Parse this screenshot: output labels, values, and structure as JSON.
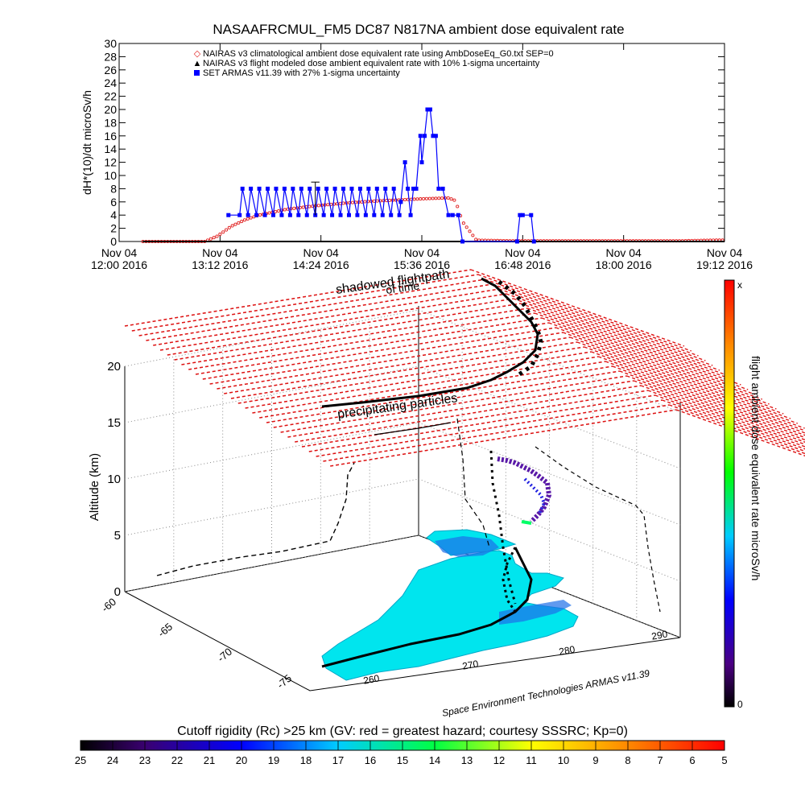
{
  "figure": {
    "title": "NASAAFRCMUL_FM5 DC87 N817NA ambient dose equivalent rate",
    "credit": "Space Environment Technologies ARMAS v11.39",
    "labels_3d": {
      "shadowed": "shadowed flightpath",
      "of_time": "of time",
      "precip": "precipitating particles"
    }
  },
  "colors": {
    "nairas_clim": "#e02020",
    "nairas_flight": "#000000",
    "armas": "#0000ff",
    "grid_red": "#dd1111",
    "coverage": "#00e5ee"
  },
  "chart_data": [
    {
      "type": "line",
      "ylabel": "dH*(10)/dt microSv/h",
      "ylim": [
        0,
        30
      ],
      "yticks": [
        0,
        2,
        4,
        6,
        8,
        10,
        12,
        14,
        16,
        18,
        20,
        22,
        24,
        26,
        28,
        30
      ],
      "xlim": [
        "2016-11-04T12:00",
        "2016-11-04T19:12"
      ],
      "xticks": [
        {
          "line1": "Nov 04",
          "line2": "12:00 2016",
          "t": 720
        },
        {
          "line1": "Nov 04",
          "line2": "13:12 2016",
          "t": 792
        },
        {
          "line1": "Nov 04",
          "line2": "14:24 2016",
          "t": 864
        },
        {
          "line1": "Nov 04",
          "line2": "15:36 2016",
          "t": 936
        },
        {
          "line1": "Nov 04",
          "line2": "16:48 2016",
          "t": 1008
        },
        {
          "line1": "Nov 04",
          "line2": "18:00 2016",
          "t": 1080
        },
        {
          "line1": "Nov 04",
          "line2": "19:12 2016",
          "t": 1152
        }
      ],
      "legend": [
        "NAIRAS v3 climatological ambient dose equivalent rate using AmbDoseEq_G0.txt SEP=0",
        "NAIRAS v3 flight modeled dose ambient equivalent rate with 10% 1-sigma uncertainty",
        "SET ARMAS v11.39 with 27% 1-sigma uncertainty"
      ],
      "series": [
        {
          "name": "NAIRAS v3 climatological ambient dose equivalent rate using AmbDoseEq_G0.txt SEP=0",
          "t": [
            737,
            760,
            781,
            790,
            800,
            810,
            820,
            840,
            860,
            880,
            900,
            920,
            940,
            955,
            960,
            965,
            975,
            1000,
            1040,
            1080,
            1120,
            1145,
            1152
          ],
          "values": [
            0,
            0,
            0,
            0.8,
            2.3,
            3.3,
            4.0,
            4.9,
            5.4,
            5.8,
            6.1,
            6.3,
            6.5,
            6.6,
            6.2,
            3.0,
            0.2,
            0.1,
            0.1,
            0.1,
            0.1,
            0.2,
            0.2
          ]
        },
        {
          "name": "NAIRAS v3 flight modeled dose ambient equivalent rate with 10% 1-sigma uncertainty",
          "t": [
            737,
            800,
            900,
            1000,
            1100,
            1152
          ],
          "values": [
            0,
            0,
            0,
            0,
            0,
            0
          ]
        },
        {
          "name": "SET ARMAS v11.39 with 27% 1-sigma uncertainty",
          "t": [
            798,
            806,
            808,
            812,
            814,
            818,
            820,
            824,
            826,
            830,
            832,
            836,
            838,
            842,
            844,
            848,
            850,
            854,
            856,
            860,
            862,
            866,
            868,
            872,
            874,
            878,
            880,
            884,
            886,
            890,
            892,
            896,
            898,
            902,
            904,
            908,
            910,
            914,
            916,
            920,
            921,
            924,
            926,
            928,
            930,
            932,
            935,
            936,
            938,
            940,
            942,
            944,
            946,
            948,
            951,
            955,
            958,
            962,
            965,
            1004,
            1006,
            1008,
            1014,
            1016
          ],
          "values": [
            4,
            4,
            8,
            4,
            8,
            4,
            8,
            4,
            8,
            4,
            8,
            4,
            8,
            4,
            8,
            4,
            8,
            4,
            8,
            4,
            8,
            4,
            8,
            4,
            8,
            4,
            8,
            4,
            8,
            4,
            8,
            4,
            8,
            4,
            8,
            4,
            8,
            4,
            8,
            4,
            6,
            12,
            8,
            4,
            8,
            8,
            16,
            12,
            16,
            20,
            20,
            16,
            16,
            8,
            8,
            4,
            4,
            4,
            0,
            0,
            4,
            4,
            4,
            0
          ]
        }
      ]
    },
    {
      "type": "scatter",
      "zlabel": "Altitude (km)",
      "zticks": [
        0,
        5,
        10,
        15,
        20
      ],
      "lat_ticks": [
        -60,
        -65,
        -70,
        -75
      ],
      "lon_ticks": [
        260,
        270,
        280,
        290
      ]
    },
    {
      "type": "heatmap",
      "title": "flight ambient dose equivalent rate microSv/h",
      "range_labels": [
        "0",
        "x"
      ]
    },
    {
      "type": "heatmap",
      "title": "Cutoff rigidity (Rc) >25 km (GV: red = greatest hazard; courtesy SSSRC; Kp=0)",
      "ticks": [
        "25",
        "24",
        "23",
        "22",
        "21",
        "20",
        "19",
        "18",
        "17",
        "16",
        "15",
        "14",
        "13",
        "12",
        "11",
        "10",
        "9",
        "8",
        "7",
        "6",
        "5"
      ]
    }
  ]
}
